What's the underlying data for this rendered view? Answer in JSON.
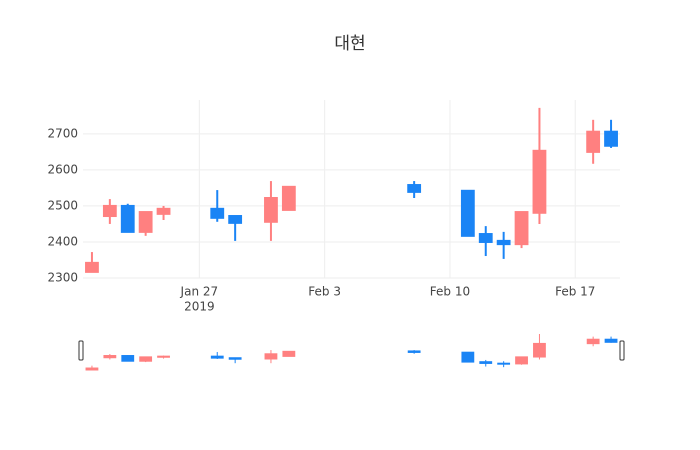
{
  "chart_data": {
    "type": "candlestick",
    "title": "대현",
    "x": [
      "2019-01-21",
      "2019-01-22",
      "2019-01-23",
      "2019-01-24",
      "2019-01-25",
      "2019-01-28",
      "2019-01-29",
      "2019-01-31",
      "2019-02-01",
      "2019-02-08",
      "2019-02-11",
      "2019-02-12",
      "2019-02-13",
      "2019-02-14",
      "2019-02-15",
      "2019-02-18",
      "2019-02-19"
    ],
    "open": [
      2317,
      2472,
      2500,
      2428,
      2478,
      2492,
      2472,
      2456,
      2489,
      2558,
      2542,
      2422,
      2403,
      2394,
      2481,
      2650,
      2706
    ],
    "high": [
      2372,
      2519,
      2506,
      2483,
      2500,
      2544,
      2472,
      2569,
      2553,
      2569,
      2544,
      2444,
      2428,
      2483,
      2772,
      2739,
      2739
    ],
    "low": [
      2317,
      2450,
      2428,
      2417,
      2461,
      2456,
      2403,
      2403,
      2489,
      2522,
      2417,
      2361,
      2353,
      2383,
      2450,
      2617,
      2661
    ],
    "close": [
      2342,
      2500,
      2428,
      2483,
      2492,
      2467,
      2453,
      2522,
      2553,
      2539,
      2417,
      2400,
      2394,
      2483,
      2653,
      2706,
      2667
    ],
    "increasing_color": "#ff8080",
    "decreasing_color": "#1a84f5",
    "xlim": [
      "2019-01-20T12:00",
      "2019-02-19T12:00"
    ],
    "xticks": [
      {
        "value": "2019-01-27",
        "label": "Jan 27"
      },
      {
        "value": "2019-02-03",
        "label": "Feb 3"
      },
      {
        "value": "2019-02-10",
        "label": "Feb 10"
      },
      {
        "value": "2019-02-17",
        "label": "Feb 17"
      }
    ],
    "x_year_label": "2019",
    "ylim": [
      2300,
      2794
    ],
    "yticks": [
      2300,
      2400,
      2500,
      2600,
      2700
    ],
    "grid": true,
    "range_slider": true
  }
}
